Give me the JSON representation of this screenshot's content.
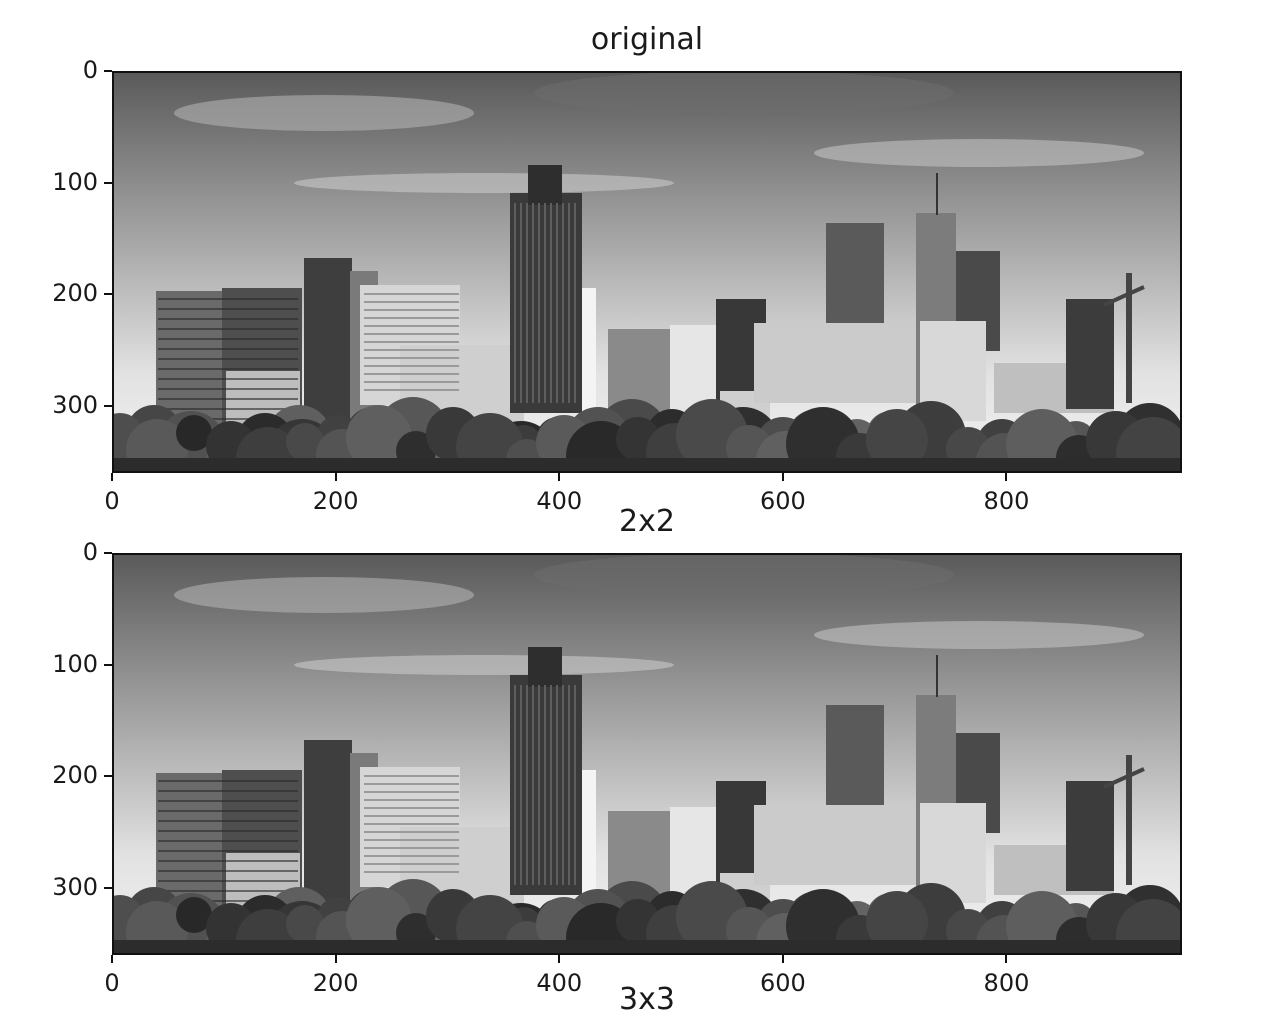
{
  "chart_data": [
    {
      "type": "image",
      "title": "original",
      "xticks": [
        "0",
        "200",
        "400",
        "600",
        "800"
      ],
      "yticks": [
        "0",
        "100",
        "200",
        "300"
      ],
      "xlim": [
        0,
        957
      ],
      "ylim": [
        360,
        0
      ],
      "colormap": "gray"
    },
    {
      "type": "image",
      "title": "2x2",
      "xticks": [
        "0",
        "200",
        "400",
        "600",
        "800"
      ],
      "yticks": [
        "0",
        "100",
        "200",
        "300"
      ],
      "xlim": [
        0,
        957
      ],
      "ylim": [
        360,
        0
      ],
      "colormap": "gray"
    },
    {
      "type": "image",
      "title": "3x3"
    }
  ]
}
